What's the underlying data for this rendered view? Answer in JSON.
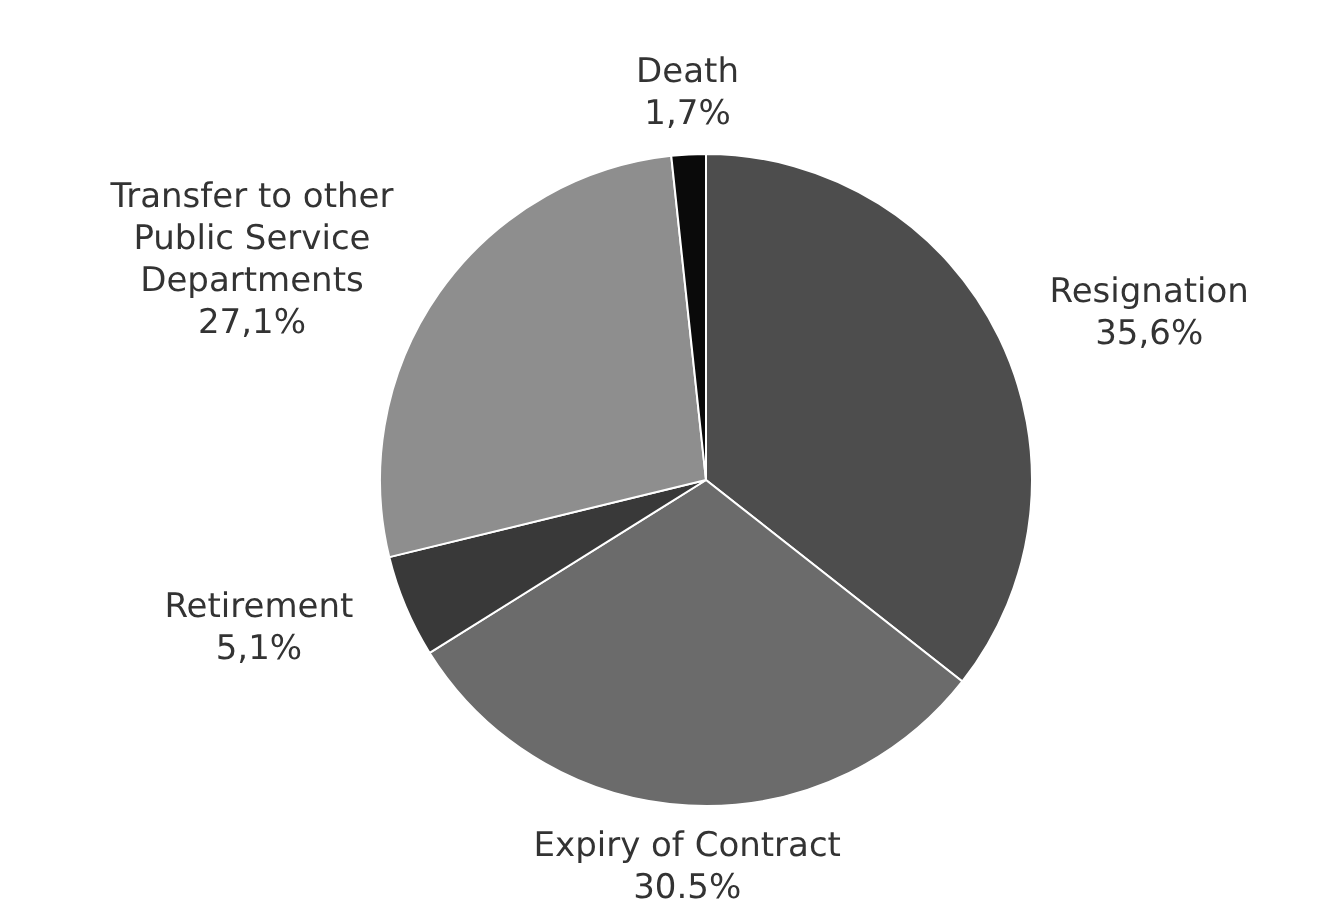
{
  "chart_data": {
    "type": "pie",
    "categories": [
      "Resignation",
      "Expiry of Contract",
      "Retirement",
      "Transfer to other Public Service Departments",
      "Death"
    ],
    "values": [
      35.6,
      30.5,
      5.1,
      27.1,
      1.7
    ],
    "colors": [
      "#4d4d4d",
      "#6b6b6b",
      "#393939",
      "#8e8e8e",
      "#0a0a0a"
    ],
    "value_labels": [
      "35,6%",
      "30.5%",
      "5,1%",
      "27,1%",
      "1,7%"
    ]
  }
}
